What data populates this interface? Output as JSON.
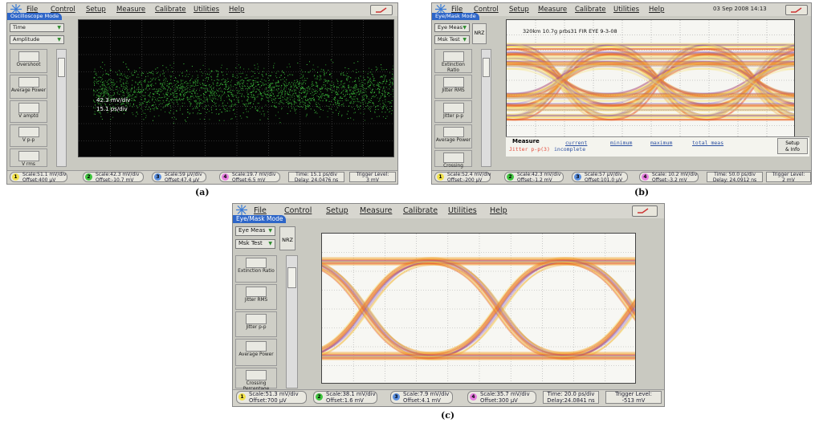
{
  "panel_a": {
    "menu": {
      "file": "File",
      "control": "Control",
      "setup": "Setup",
      "measure": "Measure",
      "calibrate": "Calibrate",
      "utilities": "Utilities",
      "help": "Help"
    },
    "mode": "Oscilloscope Mode",
    "dropdown1": "Time",
    "dropdown2": "Amplitude",
    "tools": [
      "Overshoot",
      "Average Power",
      "V amptd",
      "V p-p",
      "V rms"
    ],
    "overlay1": "42.3 mV/div",
    "overlay2": "15.1 ps/div",
    "status": [
      {
        "ch": "1",
        "color": "#f2e24c",
        "l1": "Scale:51.1 mV/div",
        "l2": "Offset:400 µV"
      },
      {
        "ch": "2",
        "color": "#3fc43f",
        "l1": "Scale:42.3 mV/div",
        "l2": "Offset:-10.7 mV"
      },
      {
        "ch": "3",
        "color": "#5a8fe0",
        "l1": "Scale:59 µV/div",
        "l2": "Offset:47.4 µV"
      },
      {
        "ch": "4",
        "color": "#e67ee0",
        "l1": "Scale:19.7 mV/div",
        "l2": "Offset:6.5 mV"
      }
    ],
    "time": {
      "l1": "Time: 15.1 ps/div",
      "l2": "Delay: 24.0476 ns"
    },
    "trigger": {
      "l1": "Trigger Level:",
      "l2": "3 mV"
    }
  },
  "panel_b": {
    "menu": {
      "file": "File",
      "control": "Control",
      "setup": "Setup",
      "measure": "Measure",
      "calibrate": "Calibrate",
      "utilities": "Utilities",
      "help": "Help"
    },
    "date": "03 Sep 2008 14:13",
    "mode": "Eye/Mask Mode",
    "dropdown1": "Eye Meas",
    "dropdown2": "Msk Test",
    "nrz": "NRZ",
    "tools": [
      "Extinction Ratio",
      "Jitter RMS",
      "Jitter p-p",
      "Average Power",
      "Crossing"
    ],
    "screen_label": "320km 10.7g prbs31 FIR EYE 9-3-08",
    "measure": {
      "title": "Measure",
      "cols": [
        "current",
        "minimum",
        "maximum",
        "total meas"
      ],
      "row_label": "Jitter p-p(3)",
      "row_value": "incomplete",
      "setup_l1": "Setup",
      "setup_l2": "& Info"
    },
    "status": [
      {
        "ch": "1",
        "color": "#f2e24c",
        "l1": "Scale:52.4 mV/div",
        "l2": "Offset:-200 µV"
      },
      {
        "ch": "2",
        "color": "#3fc43f",
        "l1": "Scale:42.3 mV/div",
        "l2": "Offset:-1.2 mV"
      },
      {
        "ch": "3",
        "color": "#5a8fe0",
        "l1": "Scale:57 µV/div",
        "l2": "Offset:101.0 µV"
      },
      {
        "ch": "4",
        "color": "#e67ee0",
        "l1": "Scale: 10.2 mV/div",
        "l2": "Offset:-3.2 mV"
      }
    ],
    "time": {
      "l1": "Time: 50.0 ps/div",
      "l2": "Delay: 24.0912 ns"
    },
    "trigger": {
      "l1": "Trigger Level:",
      "l2": "2 mV"
    }
  },
  "panel_c": {
    "menu": {
      "file": "File",
      "control": "Control",
      "setup": "Setup",
      "measure": "Measure",
      "calibrate": "Calibrate",
      "utilities": "Utilities",
      "help": "Help"
    },
    "mode": "Eye/Mask Mode",
    "dropdown1": "Eye Meas",
    "dropdown2": "Msk Test",
    "nrz": "NRZ",
    "tools": [
      "Extinction Ratio",
      "Jitter RMS",
      "Jitter p-p",
      "Average Power",
      "Crossing Percentage"
    ],
    "status": [
      {
        "ch": "1",
        "color": "#f2e24c",
        "l1": "Scale:51.3 mV/div",
        "l2": "Offset:700 µV"
      },
      {
        "ch": "2",
        "color": "#3fc43f",
        "l1": "Scale:38.1 mV/div",
        "l2": "Offset:1.6 mV"
      },
      {
        "ch": "3",
        "color": "#5a8fe0",
        "l1": "Scale:7.9 mV/div",
        "l2": "Offset:4.1 mV"
      },
      {
        "ch": "4",
        "color": "#e67ee0",
        "l1": "Scale:35.7 mV/div",
        "l2": "Offset:300 µV"
      }
    ],
    "time": {
      "l1": "Time: 20.0 ps/div",
      "l2": "Delay:24.0841 ns"
    },
    "trigger": {
      "l1": "Trigger Level:",
      "l2": "-513 mV"
    }
  },
  "captions": {
    "a": "(a)",
    "b": "(b)",
    "c": "(c)"
  }
}
